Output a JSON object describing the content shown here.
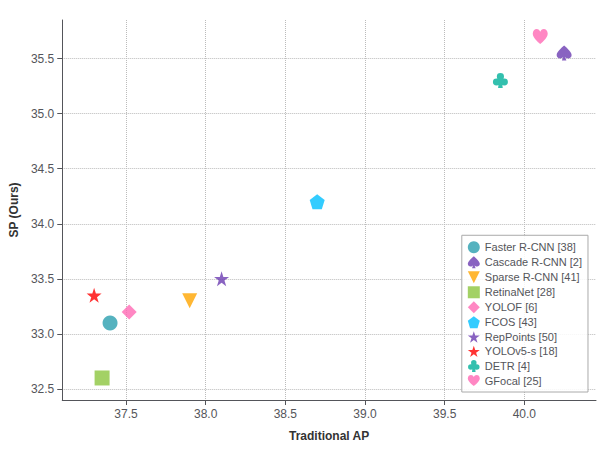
{
  "chart_data": {
    "type": "scatter",
    "xlabel": "Traditional AP",
    "ylabel": "SP (Ours)",
    "xlim": [
      37.1,
      40.45
    ],
    "ylim": [
      32.4,
      35.85
    ],
    "xticks": [
      37.5,
      38.0,
      38.5,
      39.0,
      39.5,
      40.0
    ],
    "yticks": [
      32.5,
      33.0,
      33.5,
      34.0,
      34.5,
      35.0,
      35.5
    ],
    "grid": true,
    "legend": "lower right",
    "series": [
      {
        "name": "Faster R-CNN [38]",
        "color": "#2B9FAF",
        "marker": "circle",
        "x": [
          37.4
        ],
        "values": [
          33.1
        ]
      },
      {
        "name": "Cascade R-CNN [2]",
        "color": "#6B3CB2",
        "marker": "spade",
        "x": [
          40.25
        ],
        "values": [
          35.55
        ]
      },
      {
        "name": "Sparse R-CNN [41]",
        "color": "#FFA500",
        "marker": "triangle_down",
        "x": [
          37.9
        ],
        "values": [
          33.3
        ]
      },
      {
        "name": "RetinaNet [28]",
        "color": "#8CC63F",
        "marker": "square",
        "x": [
          37.35
        ],
        "values": [
          32.6
        ]
      },
      {
        "name": "YOLOF [6]",
        "color": "#FF69B4",
        "marker": "diamond",
        "x": [
          37.52
        ],
        "values": [
          33.2
        ]
      },
      {
        "name": "FCOS [43]",
        "color": "#00BFFF",
        "marker": "pentagon",
        "x": [
          38.7
        ],
        "values": [
          34.2
        ]
      },
      {
        "name": "RepPoints [50]",
        "color": "#6B3CB2",
        "marker": "star",
        "x": [
          38.1
        ],
        "values": [
          33.5
        ]
      },
      {
        "name": "YOLOv5-s [18]",
        "color": "#FF0000",
        "marker": "star",
        "x": [
          37.3
        ],
        "values": [
          33.35
        ]
      },
      {
        "name": "DETR [4]",
        "color": "#00B09A",
        "marker": "club",
        "x": [
          39.85
        ],
        "values": [
          35.3
        ]
      },
      {
        "name": "GFocal [25]",
        "color": "#FF69B4",
        "marker": "heart",
        "x": [
          40.1
        ],
        "values": [
          35.7
        ]
      }
    ]
  }
}
